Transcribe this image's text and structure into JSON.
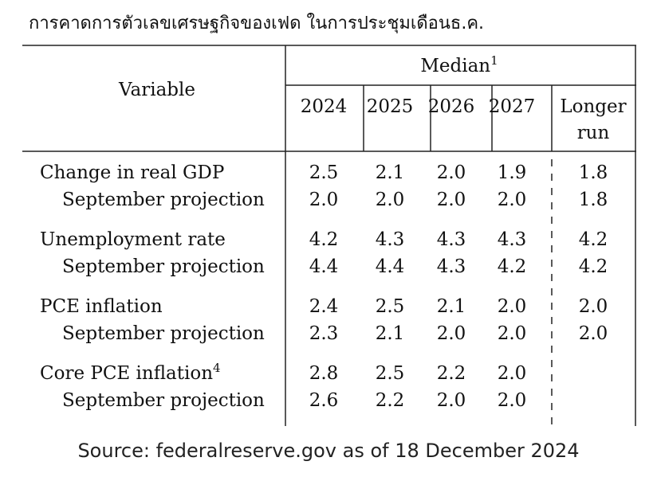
{
  "title": "การคาดการตัวเลขเศรษฐกิจของเฟด ในการประชุมเดือนธ.ค.",
  "table": {
    "variable_header": "Variable",
    "median_header": "Median",
    "median_note": "1",
    "columns": [
      "2024",
      "2025",
      "2026",
      "2027"
    ],
    "longer_run": [
      "Longer",
      "run"
    ],
    "groups": [
      {
        "label": "Change in real GDP",
        "values": [
          "2.5",
          "2.1",
          "2.0",
          "1.9",
          "1.8"
        ],
        "sub_label": "September projection",
        "sub_values": [
          "2.0",
          "2.0",
          "2.0",
          "2.0",
          "1.8"
        ]
      },
      {
        "label": "Unemployment rate",
        "values": [
          "4.2",
          "4.3",
          "4.3",
          "4.3",
          "4.2"
        ],
        "sub_label": "September projection",
        "sub_values": [
          "4.4",
          "4.4",
          "4.3",
          "4.2",
          "4.2"
        ]
      },
      {
        "label": "PCE inflation",
        "values": [
          "2.4",
          "2.5",
          "2.1",
          "2.0",
          "2.0"
        ],
        "sub_label": "September projection",
        "sub_values": [
          "2.3",
          "2.1",
          "2.0",
          "2.0",
          "2.0"
        ]
      },
      {
        "label": "Core PCE inflation",
        "label_note": "4",
        "values": [
          "2.8",
          "2.5",
          "2.2",
          "2.0"
        ],
        "sub_label": "September projection",
        "sub_values": [
          "2.6",
          "2.2",
          "2.0",
          "2.0"
        ]
      }
    ]
  },
  "source": "Source: federalreserve.gov as of 18 December 2024"
}
